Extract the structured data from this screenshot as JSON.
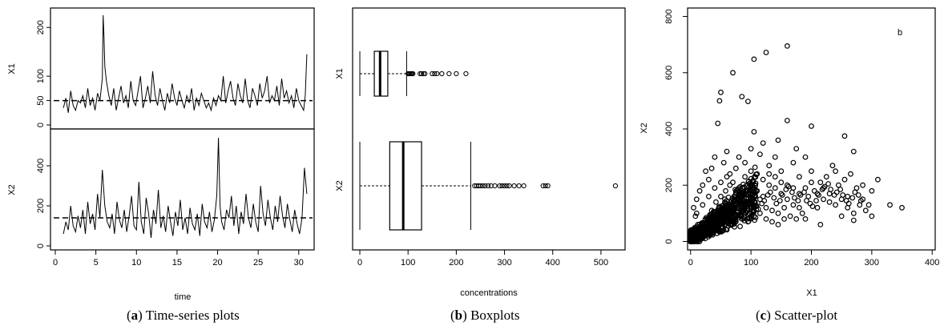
{
  "chart_data": [
    {
      "type": "line",
      "panel": "(a)",
      "caption_label": "a",
      "caption_text": "Time-series plots",
      "xlabel": "time",
      "x_ticks": [
        0,
        5,
        10,
        15,
        20,
        25,
        30
      ],
      "xlim": [
        0,
        31.5
      ],
      "series": [
        {
          "name": "X1",
          "ylim": [
            0,
            230
          ],
          "y_ticks": [
            0,
            50,
            100,
            200
          ],
          "mean_line": 50,
          "x": [
            1,
            1.3,
            1.6,
            1.9,
            2.2,
            2.5,
            2.8,
            3.1,
            3.4,
            3.7,
            4,
            4.3,
            4.6,
            4.9,
            5.2,
            5.5,
            5.8,
            5.9,
            6,
            6.1,
            6.3,
            6.6,
            6.9,
            7.2,
            7.5,
            7.8,
            8.1,
            8.4,
            8.7,
            9,
            9.3,
            9.6,
            9.9,
            10.2,
            10.5,
            10.8,
            11.1,
            11.4,
            11.7,
            12,
            12.3,
            12.6,
            12.9,
            13.2,
            13.5,
            13.8,
            14.1,
            14.4,
            14.7,
            15,
            15.3,
            15.6,
            15.9,
            16.2,
            16.5,
            16.8,
            17.1,
            17.4,
            17.7,
            18,
            18.3,
            18.6,
            18.9,
            19.2,
            19.5,
            19.8,
            20.1,
            20.4,
            20.7,
            21,
            21.3,
            21.6,
            21.9,
            22.2,
            22.5,
            22.8,
            23.1,
            23.4,
            23.7,
            24,
            24.3,
            24.6,
            24.9,
            25.2,
            25.5,
            25.8,
            26.1,
            26.4,
            26.7,
            27,
            27.3,
            27.6,
            27.9,
            28.2,
            28.5,
            28.8,
            29.1,
            29.4,
            29.7,
            30,
            30.3,
            30.6,
            30.8,
            31
          ],
          "y": [
            35,
            55,
            25,
            70,
            40,
            30,
            50,
            45,
            60,
            35,
            75,
            40,
            55,
            30,
            65,
            50,
            95,
            225,
            180,
            120,
            90,
            60,
            40,
            75,
            30,
            55,
            80,
            45,
            60,
            35,
            90,
            50,
            40,
            70,
            100,
            35,
            55,
            80,
            45,
            110,
            60,
            40,
            75,
            50,
            30,
            65,
            45,
            85,
            55,
            40,
            70,
            50,
            35,
            60,
            45,
            75,
            30,
            55,
            40,
            65,
            50,
            35,
            45,
            30,
            55,
            40,
            60,
            50,
            100,
            45,
            70,
            90,
            55,
            40,
            85,
            60,
            45,
            95,
            50,
            35,
            75,
            60,
            40,
            85,
            55,
            70,
            100,
            45,
            60,
            50,
            80,
            40,
            95,
            55,
            70,
            45,
            60,
            35,
            75,
            50,
            40,
            30,
            60,
            145
          ]
        },
        {
          "name": "X2",
          "ylim": [
            0,
            560
          ],
          "y_ticks": [
            0,
            200,
            400
          ],
          "mean_line": 140,
          "x": [
            1,
            1.3,
            1.6,
            1.9,
            2.2,
            2.5,
            2.8,
            3.1,
            3.4,
            3.7,
            4,
            4.3,
            4.6,
            4.9,
            5.2,
            5.5,
            5.8,
            6.1,
            6.4,
            6.7,
            7,
            7.3,
            7.6,
            7.9,
            8.2,
            8.5,
            8.8,
            9.1,
            9.4,
            9.7,
            10,
            10.3,
            10.6,
            10.9,
            11.2,
            11.5,
            11.8,
            12.1,
            12.4,
            12.7,
            13,
            13.3,
            13.6,
            13.9,
            14.2,
            14.5,
            14.8,
            15.1,
            15.4,
            15.7,
            16,
            16.3,
            16.6,
            16.9,
            17.2,
            17.5,
            17.8,
            18.1,
            18.4,
            18.7,
            19,
            19.3,
            19.6,
            19.9,
            20.1,
            20.3,
            20.5,
            20.8,
            21.1,
            21.4,
            21.7,
            22,
            22.3,
            22.6,
            22.9,
            23.2,
            23.5,
            23.8,
            24.1,
            24.4,
            24.7,
            25,
            25.3,
            25.6,
            25.9,
            26.2,
            26.5,
            26.8,
            27.1,
            27.4,
            27.7,
            28,
            28.3,
            28.6,
            28.9,
            29.2,
            29.5,
            29.8,
            30.1,
            30.4,
            30.7,
            31
          ],
          "y": [
            60,
            120,
            80,
            200,
            100,
            70,
            150,
            90,
            180,
            60,
            220,
            110,
            160,
            80,
            260,
            140,
            380,
            200,
            120,
            90,
            160,
            60,
            220,
            130,
            90,
            180,
            70,
            150,
            250,
            100,
            80,
            320,
            120,
            60,
            240,
            160,
            40,
            180,
            110,
            280,
            90,
            150,
            70,
            200,
            120,
            50,
            170,
            100,
            230,
            80,
            140,
            60,
            190,
            110,
            80,
            160,
            50,
            210,
            120,
            90,
            170,
            70,
            130,
            250,
            540,
            200,
            120,
            80,
            180,
            140,
            250,
            100,
            200,
            60,
            170,
            110,
            260,
            140,
            90,
            210,
            120,
            70,
            300,
            160,
            100,
            230,
            140,
            80,
            200,
            120,
            250,
            150,
            90,
            210,
            130,
            70,
            180,
            110,
            60,
            140,
            390,
            260
          ]
        }
      ]
    },
    {
      "type": "box",
      "panel": "(b)",
      "caption_label": "b",
      "caption_text": "Boxplots",
      "xlabel": "concentrations",
      "x_ticks": [
        0,
        100,
        200,
        300,
        400,
        500
      ],
      "xlim": [
        -15,
        550
      ],
      "series": [
        {
          "name": "X1",
          "whisker_low": 0,
          "q1": 30,
          "median": 42,
          "q3": 58,
          "whisker_high": 97,
          "outliers": [
            100,
            102,
            104,
            106,
            108,
            110,
            125,
            128,
            132,
            135,
            150,
            155,
            160,
            170,
            185,
            200,
            220
          ]
        },
        {
          "name": "X2",
          "whisker_low": 0,
          "q1": 62,
          "median": 90,
          "q3": 128,
          "whisker_high": 230,
          "outliers": [
            238,
            242,
            246,
            250,
            255,
            260,
            266,
            272,
            280,
            290,
            295,
            300,
            305,
            310,
            320,
            330,
            340,
            380,
            385,
            390,
            530
          ]
        }
      ]
    },
    {
      "type": "scatter",
      "panel": "(c)",
      "caption_label": "c",
      "caption_text": "Scatter-plot",
      "xlabel": "X1",
      "ylabel": "X2",
      "annotation": "b",
      "x_ticks": [
        0,
        100,
        200,
        300,
        400
      ],
      "y_ticks": [
        0,
        200,
        400,
        600,
        800
      ],
      "xlim": [
        -5,
        405
      ],
      "ylim": [
        -30,
        830
      ],
      "points": [
        [
          160,
          695
        ],
        [
          125,
          672
        ],
        [
          105,
          648
        ],
        [
          70,
          600
        ],
        [
          50,
          530
        ],
        [
          85,
          515
        ],
        [
          48,
          500
        ],
        [
          95,
          498
        ],
        [
          45,
          420
        ],
        [
          160,
          430
        ],
        [
          105,
          390
        ],
        [
          200,
          410
        ],
        [
          255,
          375
        ],
        [
          120,
          350
        ],
        [
          145,
          360
        ],
        [
          175,
          330
        ],
        [
          270,
          320
        ],
        [
          310,
          220
        ],
        [
          350,
          120
        ],
        [
          300,
          180
        ],
        [
          285,
          200
        ],
        [
          240,
          250
        ],
        [
          260,
          160
        ],
        [
          290,
          110
        ],
        [
          220,
          190
        ],
        [
          230,
          140
        ],
        [
          200,
          250
        ],
        [
          190,
          300
        ],
        [
          180,
          230
        ],
        [
          210,
          120
        ],
        [
          250,
          90
        ],
        [
          270,
          75
        ],
        [
          330,
          130
        ],
        [
          300,
          90
        ],
        [
          215,
          60
        ],
        [
          190,
          80
        ],
        [
          170,
          280
        ],
        [
          150,
          250
        ],
        [
          140,
          300
        ],
        [
          130,
          270
        ],
        [
          115,
          310
        ],
        [
          100,
          330
        ],
        [
          90,
          280
        ],
        [
          80,
          300
        ],
        [
          75,
          260
        ],
        [
          65,
          240
        ],
        [
          60,
          320
        ],
        [
          55,
          280
        ],
        [
          40,
          300
        ],
        [
          35,
          260
        ],
        [
          30,
          220
        ],
        [
          25,
          250
        ],
        [
          20,
          200
        ],
        [
          15,
          180
        ],
        [
          10,
          150
        ],
        [
          5,
          120
        ],
        [
          8,
          90
        ],
        [
          12,
          60
        ],
        [
          3,
          40
        ],
        [
          2,
          20
        ],
        [
          6,
          10
        ],
        [
          4,
          5
        ],
        [
          18,
          30
        ],
        [
          22,
          50
        ],
        [
          28,
          80
        ],
        [
          35,
          110
        ],
        [
          42,
          140
        ],
        [
          50,
          160
        ],
        [
          58,
          180
        ],
        [
          65,
          200
        ],
        [
          72,
          160
        ],
        [
          80,
          140
        ],
        [
          90,
          180
        ],
        [
          100,
          200
        ],
        [
          110,
          180
        ],
        [
          120,
          160
        ],
        [
          130,
          200
        ],
        [
          140,
          190
        ],
        [
          150,
          170
        ],
        [
          160,
          150
        ],
        [
          170,
          130
        ],
        [
          180,
          120
        ],
        [
          45,
          60
        ],
        [
          55,
          80
        ],
        [
          65,
          100
        ],
        [
          75,
          120
        ],
        [
          85,
          110
        ],
        [
          95,
          130
        ],
        [
          105,
          140
        ],
        [
          115,
          150
        ],
        [
          125,
          120
        ],
        [
          135,
          110
        ],
        [
          145,
          100
        ],
        [
          155,
          120
        ],
        [
          165,
          90
        ],
        [
          175,
          80
        ],
        [
          185,
          100
        ],
        [
          195,
          160
        ],
        [
          205,
          180
        ],
        [
          215,
          210
        ],
        [
          225,
          230
        ],
        [
          235,
          270
        ],
        [
          245,
          200
        ],
        [
          255,
          220
        ],
        [
          265,
          240
        ],
        [
          275,
          190
        ],
        [
          285,
          150
        ],
        [
          295,
          130
        ],
        [
          15,
          20
        ],
        [
          25,
          30
        ],
        [
          35,
          40
        ],
        [
          45,
          50
        ],
        [
          55,
          40
        ],
        [
          65,
          60
        ],
        [
          75,
          70
        ],
        [
          85,
          80
        ],
        [
          95,
          70
        ],
        [
          105,
          90
        ],
        [
          115,
          100
        ],
        [
          125,
          80
        ],
        [
          135,
          70
        ],
        [
          145,
          60
        ],
        [
          155,
          80
        ],
        [
          10,
          100
        ],
        [
          20,
          130
        ],
        [
          30,
          160
        ],
        [
          40,
          190
        ],
        [
          50,
          210
        ],
        [
          60,
          230
        ],
        [
          70,
          210
        ],
        [
          80,
          190
        ],
        [
          90,
          230
        ],
        [
          100,
          250
        ],
        [
          110,
          240
        ],
        [
          120,
          220
        ],
        [
          130,
          240
        ],
        [
          140,
          230
        ],
        [
          150,
          210
        ],
        [
          160,
          200
        ],
        [
          170,
          190
        ],
        [
          180,
          170
        ],
        [
          190,
          190
        ],
        [
          200,
          210
        ],
        [
          210,
          170
        ],
        [
          220,
          150
        ],
        [
          230,
          170
        ],
        [
          240,
          130
        ],
        [
          250,
          150
        ],
        [
          260,
          120
        ],
        [
          270,
          100
        ],
        [
          280,
          130
        ],
        [
          8,
          30
        ],
        [
          14,
          45
        ],
        [
          20,
          65
        ],
        [
          26,
          85
        ],
        [
          32,
          95
        ],
        [
          38,
          75
        ],
        [
          44,
          95
        ],
        [
          52,
          115
        ],
        [
          58,
          135
        ],
        [
          62,
          125
        ],
        [
          68,
          145
        ],
        [
          74,
          165
        ],
        [
          78,
          185
        ],
        [
          84,
          155
        ],
        [
          88,
          135
        ],
        [
          92,
          155
        ],
        [
          98,
          175
        ],
        [
          102,
          165
        ],
        [
          108,
          125
        ],
        [
          112,
          115
        ],
        [
          118,
          135
        ],
        [
          122,
          145
        ],
        [
          128,
          165
        ],
        [
          132,
          175
        ],
        [
          138,
          155
        ],
        [
          142,
          135
        ],
        [
          148,
          145
        ],
        [
          152,
          165
        ],
        [
          158,
          185
        ],
        [
          162,
          195
        ],
        [
          168,
          175
        ],
        [
          172,
          155
        ],
        [
          178,
          145
        ],
        [
          182,
          165
        ],
        [
          188,
          175
        ],
        [
          192,
          145
        ],
        [
          198,
          135
        ],
        [
          202,
          125
        ],
        [
          208,
          145
        ],
        [
          212,
          165
        ],
        [
          218,
          185
        ],
        [
          222,
          195
        ],
        [
          228,
          205
        ],
        [
          232,
          185
        ],
        [
          238,
          165
        ],
        [
          242,
          175
        ],
        [
          248,
          185
        ],
        [
          252,
          165
        ],
        [
          258,
          145
        ],
        [
          262,
          135
        ],
        [
          268,
          155
        ],
        [
          272,
          175
        ],
        [
          278,
          165
        ],
        [
          282,
          145
        ]
      ]
    }
  ]
}
